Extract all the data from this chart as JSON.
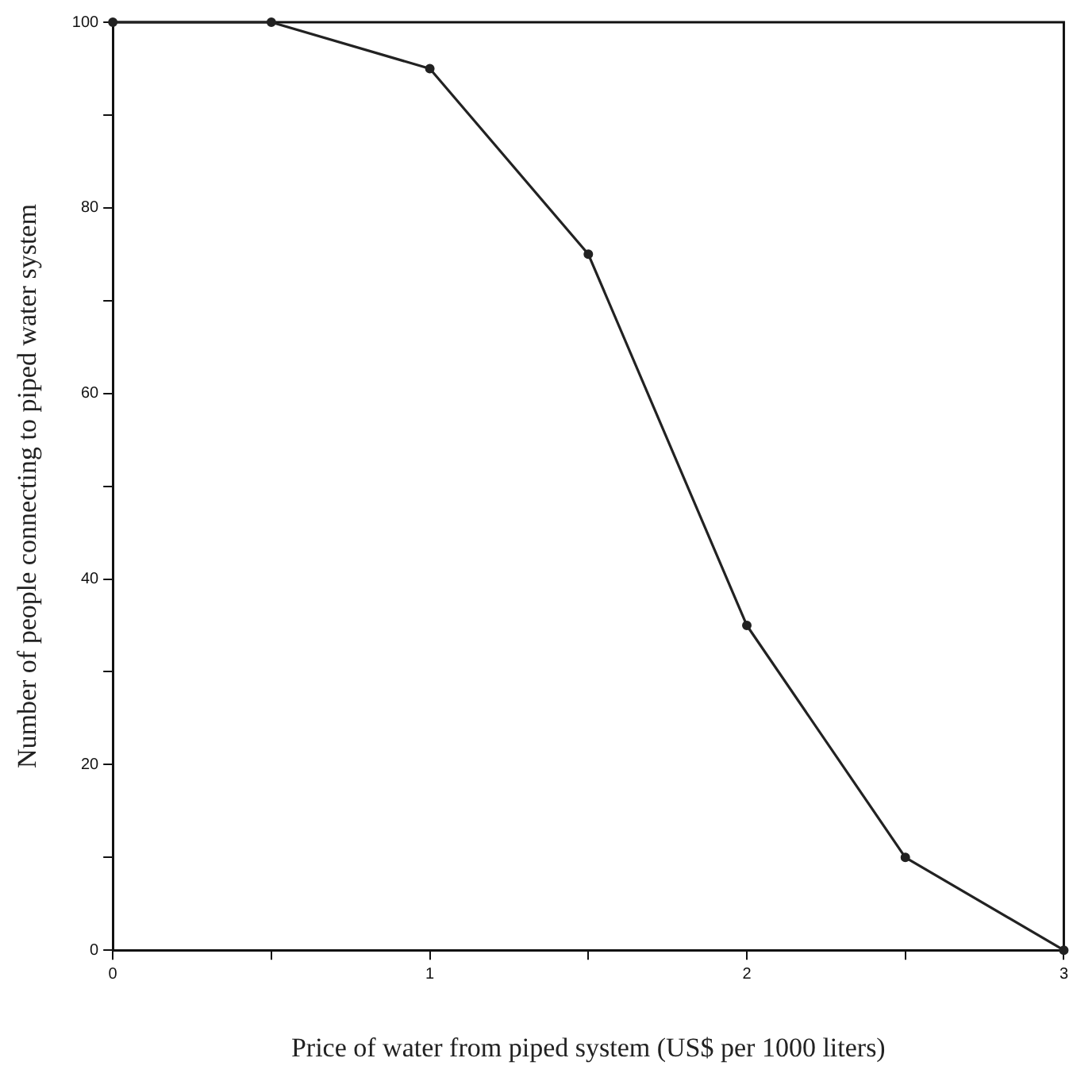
{
  "chart_data": {
    "type": "line",
    "xlabel": "Price of water from piped system (US$ per 1000 liters)",
    "ylabel": "Number of people connecting to piped water system",
    "x": [
      0,
      0.5,
      1,
      1.5,
      2,
      2.5,
      3
    ],
    "series": [
      {
        "color": "#222222",
        "values": [
          100,
          100,
          95,
          75,
          35,
          10,
          0
        ]
      }
    ],
    "xlim": [
      0,
      3
    ],
    "xticks": [
      0,
      {
        "value": 0.5,
        "label": null
      },
      1,
      {
        "value": 1.5,
        "label": null
      },
      2,
      {
        "value": 2.5,
        "label": null
      },
      3
    ],
    "ylim": [
      0,
      100
    ],
    "yticks": [
      0,
      {
        "value": 10,
        "label": null
      },
      20,
      {
        "value": 30,
        "label": null
      },
      40,
      {
        "value": 50,
        "label": null
      },
      60,
      {
        "value": 70,
        "label": null
      },
      80,
      {
        "value": 90,
        "label": null
      },
      100
    ],
    "grid": false,
    "legend": false,
    "marker": "circle",
    "line_style": "solid"
  }
}
